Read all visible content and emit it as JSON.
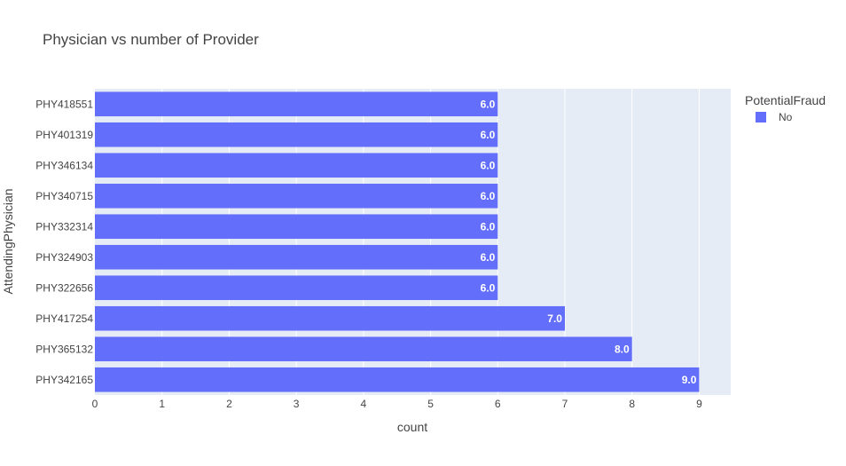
{
  "chart_data": {
    "type": "bar",
    "orientation": "horizontal",
    "title": "Physician vs number of Provider",
    "xlabel": "count",
    "ylabel": "AttendingPhysician",
    "categories": [
      "PHY418551",
      "PHY401319",
      "PHY346134",
      "PHY340715",
      "PHY332314",
      "PHY324903",
      "PHY322656",
      "PHY417254",
      "PHY365132",
      "PHY342165"
    ],
    "series": [
      {
        "name": "No",
        "values": [
          6,
          6,
          6,
          6,
          6,
          6,
          6,
          7,
          8,
          9
        ],
        "color": "#636efa"
      }
    ],
    "data_labels": [
      "6.0",
      "6.0",
      "6.0",
      "6.0",
      "6.0",
      "6.0",
      "6.0",
      "7.0",
      "8.0",
      "9.0"
    ],
    "xticks": [
      "0",
      "1",
      "2",
      "3",
      "4",
      "5",
      "6",
      "7",
      "8",
      "9"
    ],
    "xlim": [
      0,
      9.47
    ],
    "grid": true,
    "plot_background": "#e5ecf6",
    "legend": {
      "title": "PotentialFraud",
      "placement": "top-right",
      "entries": [
        "No"
      ]
    }
  }
}
